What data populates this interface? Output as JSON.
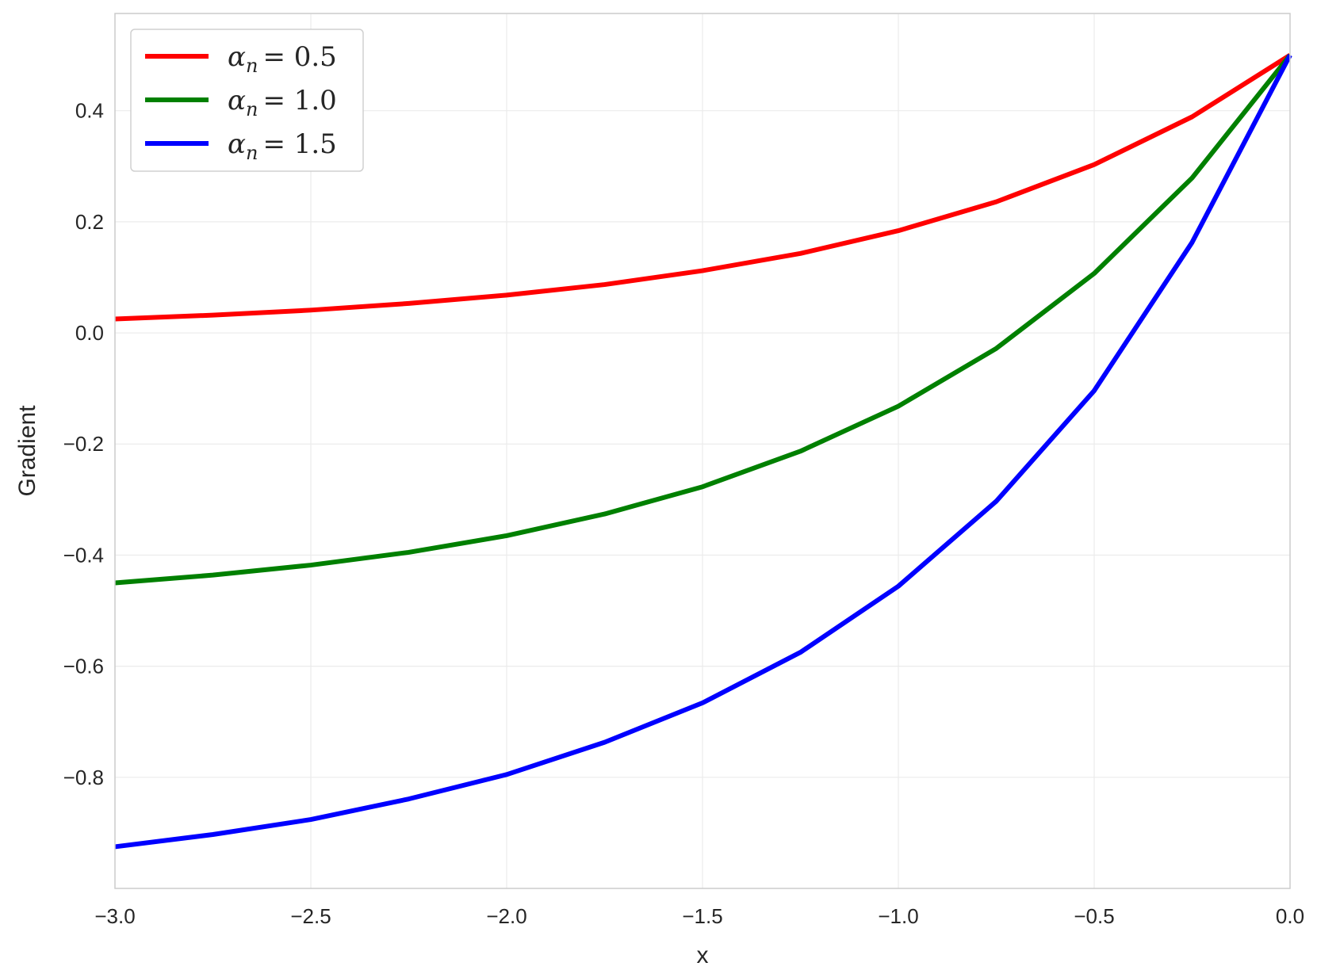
{
  "chart_data": {
    "type": "line",
    "xlabel": "x",
    "ylabel": "Gradient",
    "xlim": [
      -3.0,
      0.0
    ],
    "ylim": [
      -1.0,
      0.575
    ],
    "grid": true,
    "legend_position": "top-left",
    "x_ticks": [
      -3.0,
      -2.5,
      -2.0,
      -1.5,
      -1.0,
      -0.5,
      0.0
    ],
    "x_tick_labels": [
      "−3.0",
      "−2.5",
      "−2.0",
      "−1.5",
      "−1.0",
      "−0.5",
      "0.0"
    ],
    "y_ticks": [
      -0.8,
      -0.6,
      -0.4,
      -0.2,
      0.0,
      0.2,
      0.4
    ],
    "y_tick_labels": [
      "−0.8",
      "−0.6",
      "−0.4",
      "−0.2",
      "0.0",
      "0.2",
      "0.4"
    ],
    "x": [
      -3.0,
      -2.75,
      -2.5,
      -2.25,
      -2.0,
      -1.75,
      -1.5,
      -1.25,
      -1.0,
      -0.75,
      -0.5,
      -0.25,
      0.0
    ],
    "series": [
      {
        "name": "αn = 0.5",
        "legend_symbol": "α",
        "legend_subscript": "n",
        "legend_value": "= 0.5",
        "color": "#ff0000",
        "values": [
          0.025,
          0.032,
          0.041,
          0.053,
          0.068,
          0.087,
          0.112,
          0.143,
          0.184,
          0.236,
          0.303,
          0.389,
          0.5
        ]
      },
      {
        "name": "αn = 1.0",
        "legend_symbol": "α",
        "legend_subscript": "n",
        "legend_value": "= 1.0",
        "color": "#008000",
        "values": [
          -0.45,
          -0.436,
          -0.418,
          -0.395,
          -0.365,
          -0.326,
          -0.277,
          -0.213,
          -0.132,
          -0.028,
          0.107,
          0.279,
          0.5
        ]
      },
      {
        "name": "αn = 1.5",
        "legend_symbol": "α",
        "legend_subscript": "n",
        "legend_value": "= 1.5",
        "color": "#0000ff",
        "values": [
          -0.925,
          -0.903,
          -0.876,
          -0.839,
          -0.795,
          -0.737,
          -0.666,
          -0.575,
          -0.456,
          -0.303,
          -0.104,
          0.163,
          0.5
        ]
      }
    ]
  }
}
